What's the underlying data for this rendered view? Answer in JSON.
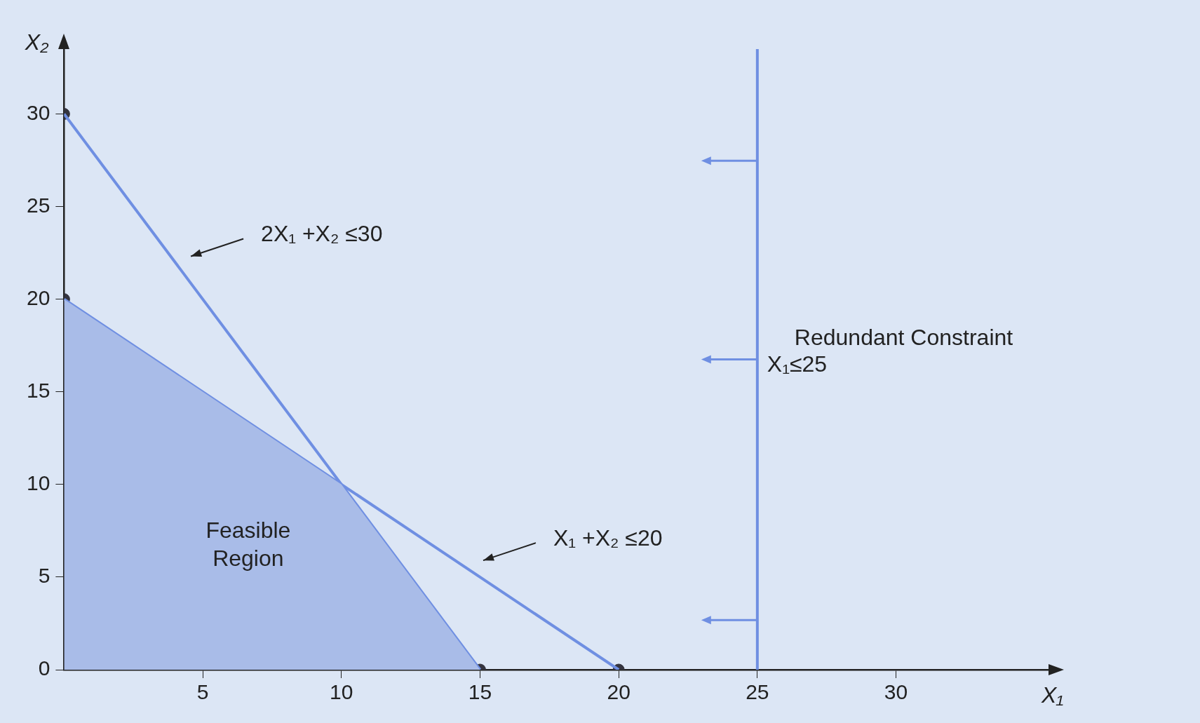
{
  "chart_data": {
    "type": "line",
    "xlabel": "X₁",
    "ylabel": "X₂",
    "xlim": [
      0,
      35.5
    ],
    "ylim": [
      0,
      33.5
    ],
    "xticks": [
      5,
      10,
      15,
      20,
      25,
      30
    ],
    "yticks": [
      0,
      5,
      10,
      15,
      20,
      25,
      30
    ],
    "grid": false,
    "legend": false,
    "series": [
      {
        "type": "area",
        "x": [
          0,
          10,
          15
        ],
        "values": [
          20,
          10,
          0
        ],
        "color": "#a9bce8"
      },
      {
        "x": [
          0,
          15
        ],
        "values": [
          30,
          0
        ],
        "color": "#6f8fe2"
      },
      {
        "x": [
          0,
          20
        ],
        "values": [
          20,
          0
        ],
        "color": "#6f8fe2"
      },
      {
        "type": "scatter",
        "x": [
          0,
          0,
          15,
          20
        ],
        "values": [
          30,
          20,
          0,
          0
        ],
        "color": "#34343f",
        "marker": "circle"
      }
    ],
    "ref_lines": [
      {
        "axis": "x",
        "value": 25,
        "label": "X₁≤25",
        "color": "#6f8fe2"
      }
    ],
    "annotations": [
      "2X₁ +X₂ ≤30",
      "X₁ +X₂ ≤20",
      "Feasible Region",
      "Redundant Constraint"
    ]
  }
}
